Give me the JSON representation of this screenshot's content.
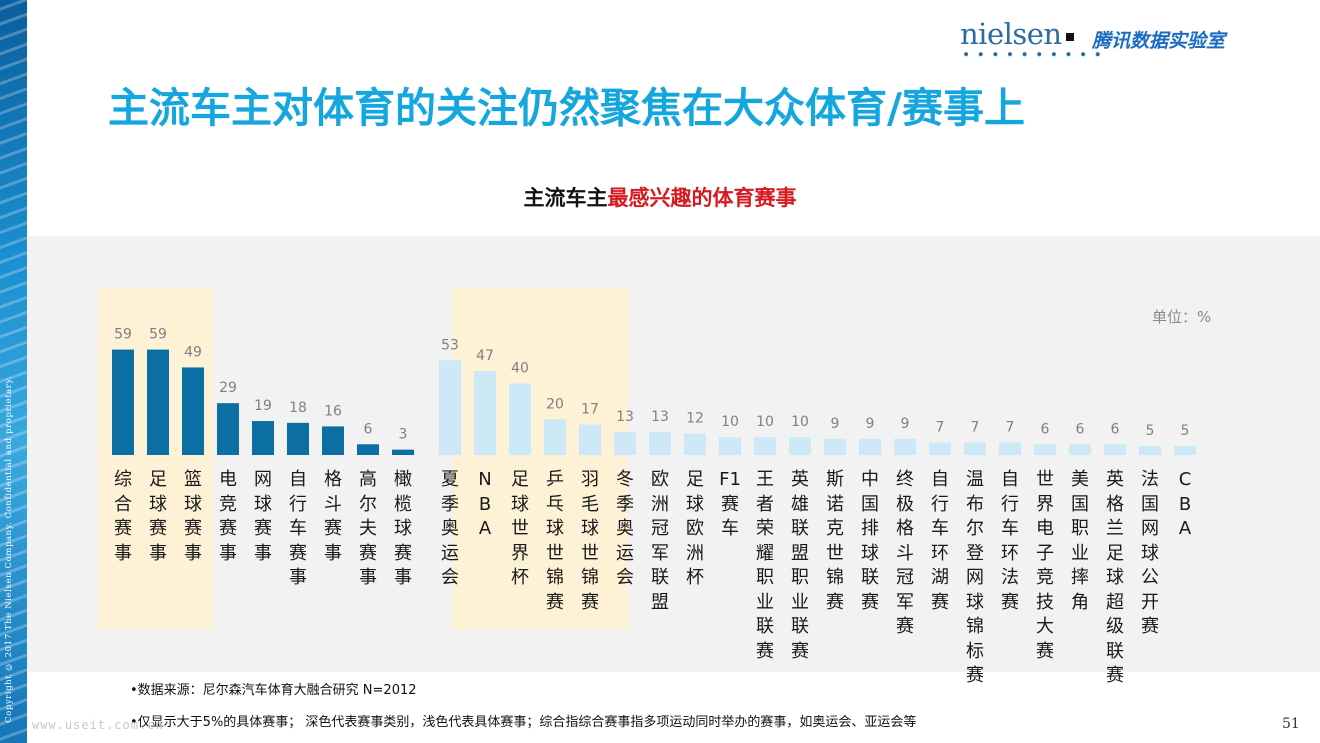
{
  "header": {
    "logo_nielsen": "nielsen",
    "logo_tencent": "腾讯数据实验室",
    "title": "主流车主对体育的关注仍然聚焦在大众体育/赛事上"
  },
  "side_copyright": "Copyright © 2017 The Nielsen Company. Confidential and proprietary.",
  "chart_data": {
    "type": "bar",
    "title_prefix": "主流车主",
    "title_highlight": "最感兴趣的体育赛事",
    "unit": "单位：%",
    "categories": [
      "综合赛事",
      "足球赛事",
      "篮球赛事",
      "电竞赛事",
      "网球赛事",
      "自行车赛事",
      "格斗赛事",
      "高尔夫赛事",
      "橄榄球赛事",
      "夏季奥运会",
      "NBA",
      "足球世界杯",
      "乒乓球世锦赛",
      "羽毛球世锦赛",
      "冬季奥运会",
      "欧洲冠军联盟",
      "足球欧洲杯",
      "F1赛车",
      "王者荣耀职业联赛",
      "英雄联盟职业联赛",
      "斯诺克世锦赛",
      "中国排球联赛",
      "终极格斗冠军赛",
      "自行车环湖赛",
      "温布尔登网球锦标赛",
      "自行车环法赛",
      "世界电子竞技大赛",
      "美国职业摔角",
      "英格兰足球超级联赛",
      "法国网球公开赛",
      "CBA"
    ],
    "values": [
      59,
      59,
      49,
      29,
      19,
      18,
      16,
      6,
      3,
      53,
      47,
      40,
      20,
      17,
      13,
      13,
      12,
      10,
      10,
      10,
      9,
      9,
      9,
      7,
      7,
      7,
      6,
      6,
      6,
      5,
      5
    ],
    "bar_type": [
      "category",
      "category",
      "category",
      "category",
      "category",
      "category",
      "category",
      "category",
      "category",
      "event",
      "event",
      "event",
      "event",
      "event",
      "event",
      "event",
      "event",
      "event",
      "event",
      "event",
      "event",
      "event",
      "event",
      "event",
      "event",
      "event",
      "event",
      "event",
      "event",
      "event",
      "event"
    ],
    "highlighted": [
      "综合赛事",
      "足球赛事",
      "篮球赛事",
      "夏季奥运会",
      "NBA",
      "足球世界杯",
      "乒乓球世锦赛",
      "羽毛球世锦赛"
    ],
    "colors": {
      "category": "#0b6fa4",
      "event": "#cde9f7",
      "highlight_bg": "#fdf1d6",
      "panel_bg": "#f2f2f2",
      "title": "#14a6de",
      "title_highlight": "#d71920"
    }
  },
  "footnotes": {
    "source": "•数据来源：尼尔森汽车体育大融合研究 N=2012",
    "note": "•仅显示大于5%的具体赛事； 深色代表赛事类别，浅色代表具体赛事；综合指综合赛事指多项运动同时举办的赛事，如奥运会、亚运会等"
  },
  "watermark": "www.useit.com.cn",
  "page_number": "51"
}
